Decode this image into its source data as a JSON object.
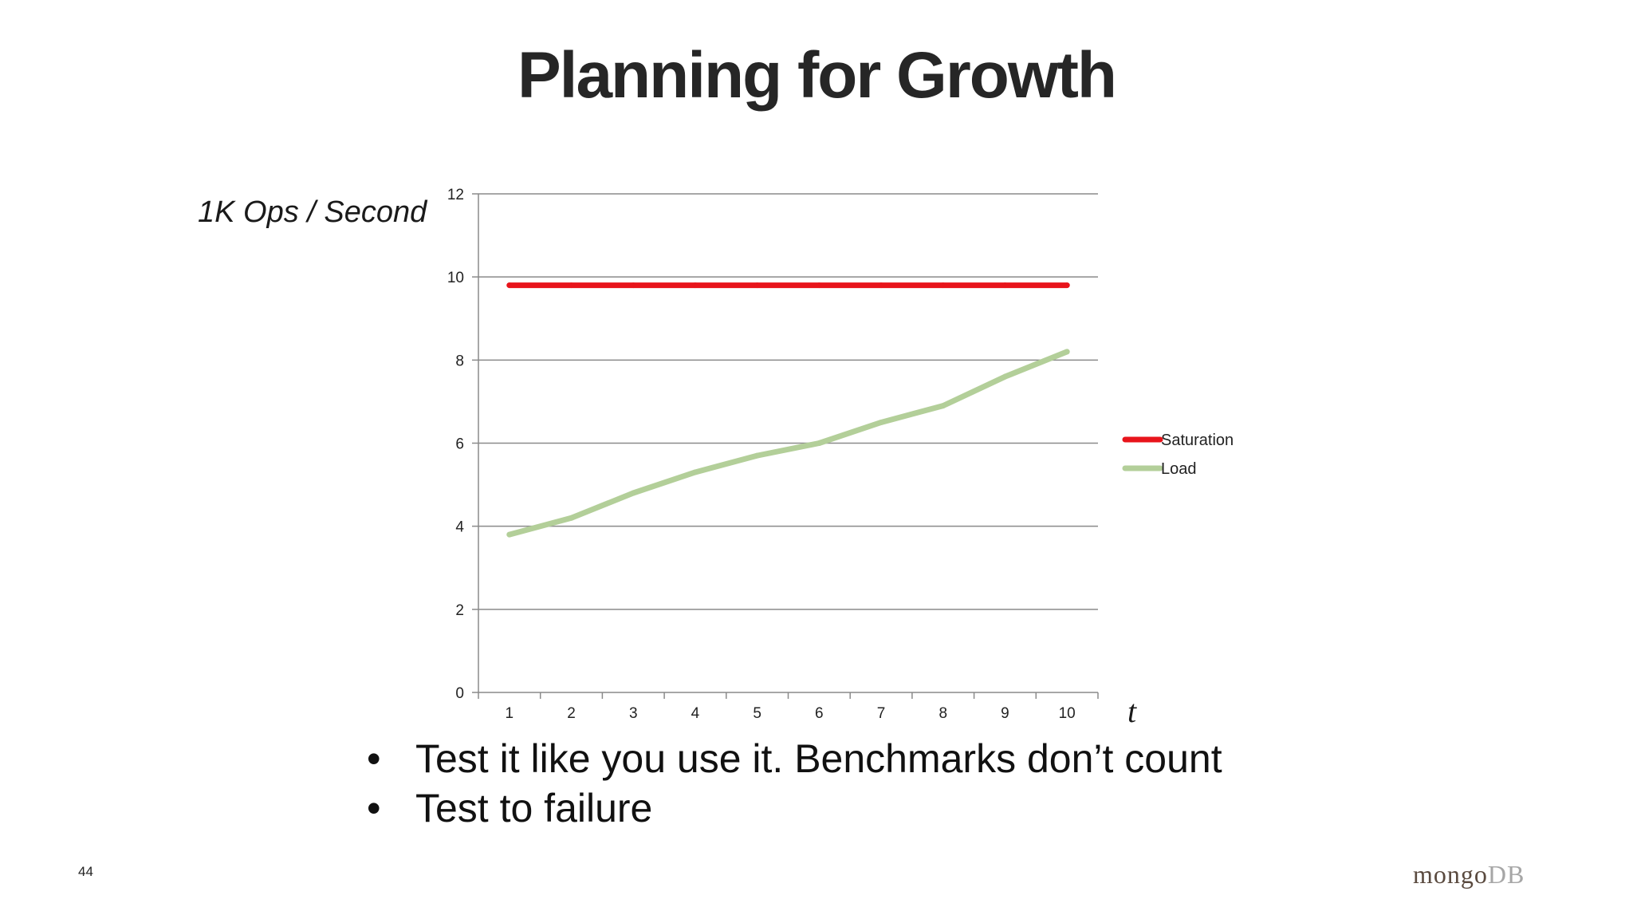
{
  "slide": {
    "title": "Planning for Growth",
    "number": "44",
    "bullets": [
      "Test it like you use it. Benchmarks don’t count",
      "Test to failure"
    ],
    "logo": {
      "part1": "mongo",
      "part2": "DB"
    }
  },
  "chart_data": {
    "type": "line",
    "ylabel": "1K Ops / Second",
    "xlabel": "t",
    "ylim": [
      0,
      12
    ],
    "y_ticks": [
      "0",
      "2",
      "4",
      "6",
      "8",
      "10",
      "12"
    ],
    "categories": [
      "1",
      "2",
      "3",
      "4",
      "5",
      "6",
      "7",
      "8",
      "9",
      "10"
    ],
    "grid": "horizontal",
    "legend_position": "right",
    "series": [
      {
        "name": "Saturation",
        "color": "#e8141b",
        "values": [
          9.8,
          9.8,
          9.8,
          9.8,
          9.8,
          9.8,
          9.8,
          9.8,
          9.8,
          9.8
        ]
      },
      {
        "name": "Load",
        "color": "#b3cf99",
        "values": [
          3.8,
          4.2,
          4.8,
          5.3,
          5.7,
          6.0,
          6.5,
          6.9,
          7.6,
          8.2
        ]
      }
    ]
  }
}
